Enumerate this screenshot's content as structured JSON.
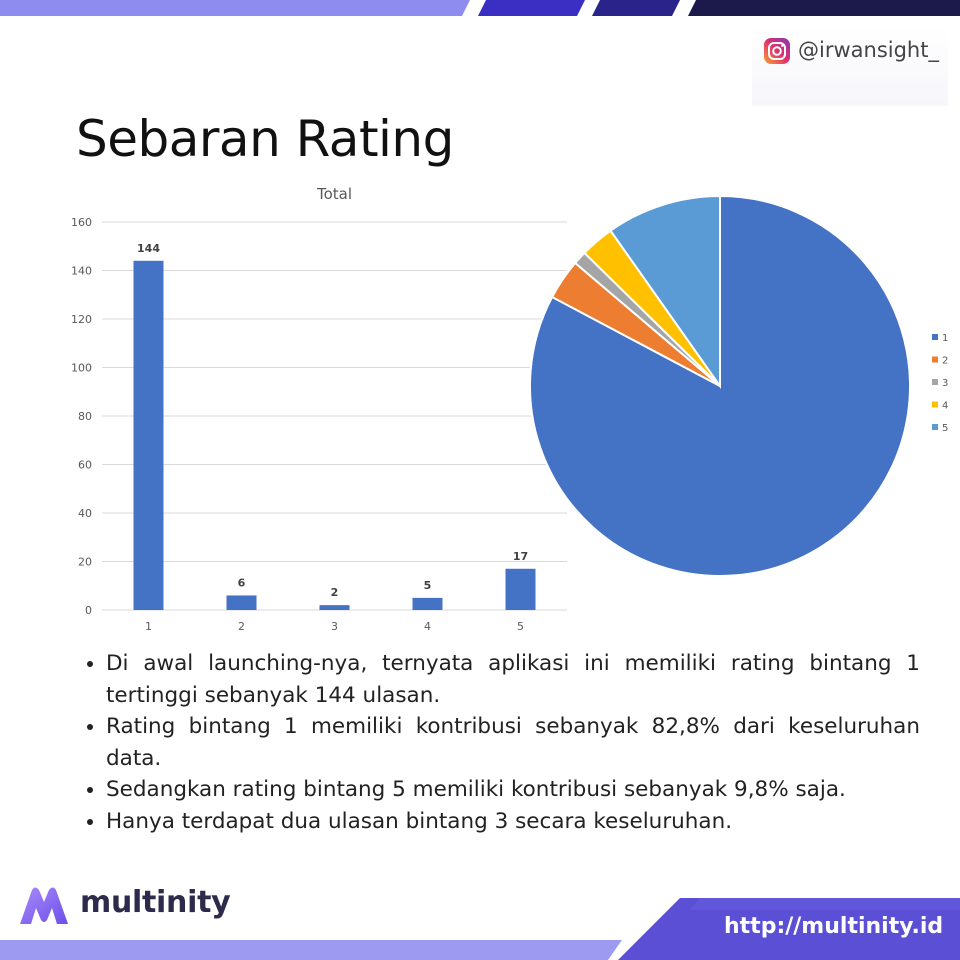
{
  "header": {
    "handle": "@irwansight_",
    "icon": "instagram-icon",
    "accent_colors": [
      "#8f8cf0",
      "#3a2fc2",
      "#2a248a",
      "#1c1a4a"
    ]
  },
  "title": "Sebaran Rating",
  "chart_data": [
    {
      "type": "bar",
      "title": "Total",
      "categories": [
        "1",
        "2",
        "3",
        "4",
        "5"
      ],
      "values": [
        144,
        6,
        2,
        5,
        17
      ],
      "data_labels": [
        "144",
        "6",
        "2",
        "5",
        "17"
      ],
      "ylim": [
        0,
        160
      ],
      "yticks": [
        0,
        20,
        40,
        60,
        80,
        100,
        120,
        140,
        160
      ],
      "ytick_labels": [
        "0",
        "20",
        "40",
        "60",
        "80",
        "100",
        "120",
        "140",
        "160"
      ],
      "grid": true,
      "color": "#4472c4"
    },
    {
      "type": "pie",
      "categories": [
        "1",
        "2",
        "3",
        "4",
        "5"
      ],
      "values": [
        144,
        6,
        2,
        5,
        17
      ],
      "colors": [
        "#4472c4",
        "#ed7d31",
        "#a5a5a5",
        "#ffc000",
        "#5b9bd5"
      ],
      "legend": "right"
    }
  ],
  "bullets": [
    "Di awal launching-nya, ternyata aplikasi ini memiliki rating bintang 1 tertinggi sebanyak 144 ulasan.",
    "Rating bintang 1 memiliki kontribusi sebanyak 82,8% dari keseluruhan data.",
    "Sedangkan rating bintang 5  memiliki kontribusi sebanyak 9,8% saja.",
    "Hanya terdapat dua ulasan bintang 3 secara keseluruhan."
  ],
  "footer": {
    "brand": "multinity",
    "url": "http://multinity.id",
    "logo_icon": "multinity-m-logo-icon"
  }
}
